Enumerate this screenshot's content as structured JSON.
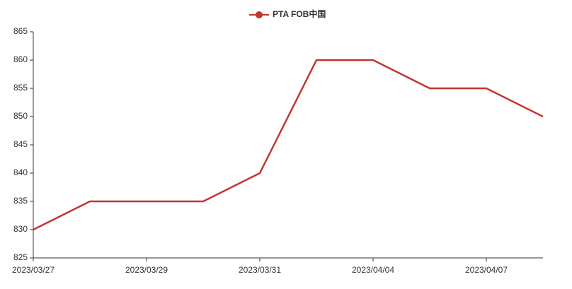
{
  "chart_data": {
    "type": "line",
    "categories": [
      "2023/03/27",
      null,
      "2023/03/29",
      null,
      "2023/03/31",
      null,
      "2023/04/04",
      null,
      "2023/04/07",
      null
    ],
    "series": [
      {
        "name": "PTA FOB中国",
        "color": "#c23531",
        "values": [
          830,
          835,
          835,
          835,
          840,
          860,
          860,
          855,
          855,
          850
        ]
      }
    ],
    "ylim": [
      825,
      865
    ],
    "yticks": [
      825,
      830,
      835,
      840,
      845,
      850,
      855,
      860,
      865
    ],
    "grid": false,
    "legend": "top"
  }
}
